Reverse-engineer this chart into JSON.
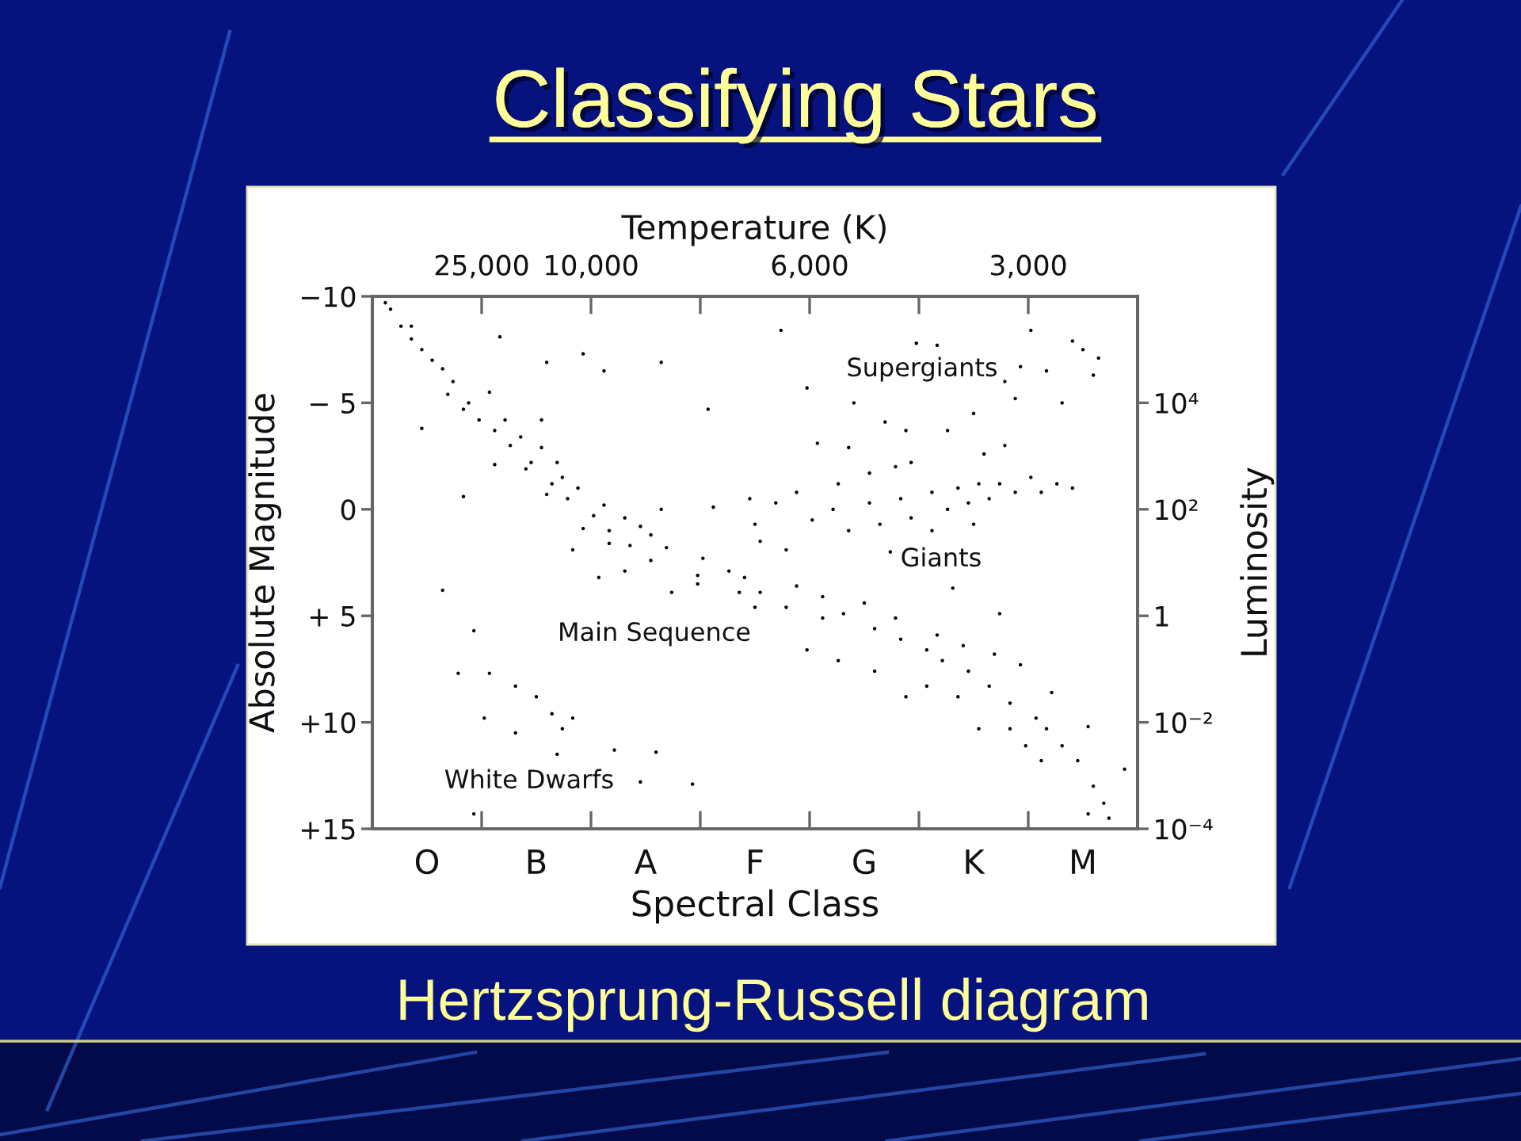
{
  "chart_data": {
    "type": "scatter",
    "title": "Classifying Stars",
    "xlabel": "Spectral Class",
    "ylabel": "Absolute Magnitude",
    "x2label": "Temperature (K)",
    "y2label": "Luminosity",
    "annotations": [
      "25,000",
      "10,000",
      "6,000",
      "3,000",
      "Supergiants",
      "Giants",
      "Main Sequence",
      "White Dwarfs",
      "Hertzsprung-Russell diagram"
    ],
    "categories": [
      null,
      null,
      null,
      null,
      null,
      null,
      null,
      null,
      null,
      null,
      "O",
      null,
      null,
      null,
      null,
      null,
      null,
      null,
      null,
      null,
      null,
      null,
      null,
      null,
      null,
      null,
      null,
      null,
      null,
      null,
      null,
      "B",
      null,
      null,
      null,
      null,
      null,
      null,
      null,
      null,
      null,
      null,
      null,
      null,
      null,
      null,
      null,
      null,
      null,
      null,
      null,
      null,
      "A",
      null,
      null,
      null,
      null,
      null,
      null,
      null,
      null,
      null,
      null,
      null,
      null,
      null,
      null,
      null,
      null,
      null,
      null,
      null,
      null,
      "F",
      null,
      null,
      null,
      null,
      null,
      null,
      null,
      null,
      null,
      null,
      null,
      null,
      null,
      null,
      null,
      null,
      null,
      null,
      null,
      null,
      "G",
      null,
      null,
      null,
      null,
      null,
      null,
      null,
      null,
      null,
      null,
      null,
      null,
      null,
      null,
      null,
      null,
      null,
      null,
      null,
      null,
      "K",
      null,
      null,
      null,
      null,
      null,
      null,
      null,
      null,
      null,
      null,
      null,
      null,
      null,
      null,
      null,
      null,
      null,
      null,
      null,
      null,
      "M",
      null,
      null,
      null,
      null,
      null,
      null,
      null,
      null,
      null,
      null
    ],
    "ylim": [
      15,
      -10
    ],
    "yticks": [
      {
        "value": -10,
        "label": "−10"
      },
      {
        "value": -5,
        "label": "− 5"
      },
      0,
      {
        "value": 5,
        "label": "+ 5"
      },
      {
        "value": 10,
        "label": "+10"
      },
      {
        "value": 15,
        "label": "+15"
      }
    ],
    "y2lim": [
      0.0001,
      1000000
    ],
    "y2ticks": [
      {
        "value": 10000,
        "label": "10⁴"
      },
      {
        "value": 100,
        "label": "10²"
      },
      1,
      {
        "value": 0.01,
        "label": "10⁻²"
      },
      {
        "value": 0.0001,
        "label": "10⁻⁴"
      }
    ],
    "log": "y2",
    "marker": "circle",
    "series": [
      {
        "color": "#000000",
        "values": [
          null,
          null,
          -9.7,
          -9.4,
          null,
          -8.6,
          null,
          -8.6,
          null,
          -7.5,
          null,
          -7.0,
          null,
          -6.6,
          -5.4,
          -6.0,
          7.7,
          -4.7,
          -5.0,
          5.7,
          -4.2,
          9.8,
          -5.5,
          -3.7,
          -8.1,
          -4.2,
          -3.0,
          8.3,
          -3.4,
          -1.9,
          -2.2,
          8.8,
          -2.9,
          -0.7,
          -1.2,
          -2.2,
          -1.5,
          -0.5,
          1.9,
          -1.0,
          0.9,
          null,
          0.3,
          3.2,
          -0.2,
          1.0,
          11.3,
          null,
          0.4,
          1.7,
          null,
          0.8,
          null,
          1.2,
          11.4,
          -6.9,
          1.8,
          3.9,
          null,
          null,
          null,
          12.9,
          3.1,
          2.3,
          -4.7,
          -0.1,
          null,
          null,
          2.9,
          null,
          3.9,
          3.2,
          -0.5,
          4.6,
          1.5,
          null,
          null,
          -0.3,
          -8.4,
          1.9,
          null,
          -0.8,
          null,
          -5.7,
          0.5,
          -3.1,
          5.1,
          null,
          0.0,
          -1.2,
          4.9,
          -2.9,
          -5.0,
          null,
          4.4,
          -0.3,
          5.6,
          0.7,
          -4.1,
          2.0,
          -2.0,
          6.1,
          -3.7,
          0.4,
          -7.8,
          null,
          6.6,
          -0.8,
          -7.7,
          7.1,
          -3.7,
          3.7,
          -1.0,
          6.4,
          -0.3,
          -4.5,
          -1.2,
          -2.6,
          -0.5,
          6.8,
          -1.2,
          -6.0,
          9.1,
          -5.2,
          -6.7,
          11.1,
          -8.4,
          9.8,
          -0.8,
          -6.5,
          8.6,
          -1.2,
          -5.0,
          null,
          -7.9,
          11.8,
          -7.5,
          14.3,
          -6.3,
          -7.1,
          13.8,
          14.5,
          null,
          null,
          12.2,
          null,
          null
        ]
      },
      {
        "color": "#000000",
        "values": [
          null,
          null,
          null,
          null,
          null,
          null,
          null,
          -8.0,
          null,
          -3.8,
          null,
          null,
          null,
          3.8,
          null,
          null,
          null,
          -0.6,
          null,
          14.3,
          null,
          null,
          7.7,
          -2.1,
          null,
          null,
          null,
          10.5,
          null,
          null,
          null,
          null,
          -4.2,
          -6.9,
          9.6,
          11.5,
          10.3,
          null,
          9.8,
          null,
          -7.3,
          null,
          null,
          null,
          -6.5,
          1.6,
          null,
          null,
          2.9,
          null,
          null,
          12.8,
          null,
          2.4,
          null,
          0.0,
          null,
          null,
          null,
          null,
          null,
          null,
          3.5,
          null,
          null,
          null,
          null,
          null,
          null,
          null,
          null,
          null,
          null,
          0.7,
          3.9,
          null,
          null,
          null,
          null,
          4.6,
          null,
          3.6,
          null,
          6.6,
          null,
          null,
          4.1,
          null,
          null,
          7.1,
          null,
          1.0,
          null,
          null,
          null,
          -1.7,
          7.6,
          null,
          null,
          null,
          5.1,
          -0.5,
          8.8,
          -2.2,
          null,
          null,
          8.3,
          1.0,
          5.9,
          null,
          0.0,
          null,
          8.8,
          null,
          7.6,
          0.7,
          10.3,
          null,
          8.3,
          null,
          4.9,
          -3.0,
          10.3,
          -0.8,
          7.3,
          null,
          -1.5,
          null,
          11.8,
          10.3,
          null,
          null,
          11.1,
          null,
          -1.0,
          null,
          null,
          10.2,
          13.0,
          null,
          null,
          null,
          null,
          null,
          null,
          null,
          null
        ]
      }
    ]
  }
}
